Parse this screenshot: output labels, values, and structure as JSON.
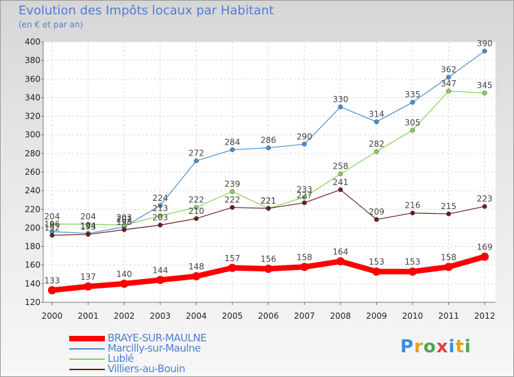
{
  "title": "Evolution des Impôts locaux par Habitant",
  "subtitle": "(en € et par an)",
  "logo": {
    "text": "Proxiti",
    "letters": [
      "P",
      "r",
      "o",
      "x",
      "i",
      "t",
      "i"
    ],
    "colors": [
      "#3a8ee0",
      "#e8a020",
      "#4da64d",
      "#e04040",
      "#3a8ee0",
      "#e8a020",
      "#4da64d"
    ]
  },
  "chart_data": {
    "type": "line",
    "title": "Evolution des Impôts locaux par Habitant",
    "subtitle": "(en € et par an)",
    "xlabel": "",
    "ylabel": "",
    "x": [
      "2000",
      "2001",
      "2002",
      "2003",
      "2004",
      "2005",
      "2006",
      "2007",
      "2008",
      "2009",
      "2010",
      "2011",
      "2012"
    ],
    "ylim": [
      120,
      400
    ],
    "yticks": [
      120,
      140,
      160,
      180,
      200,
      220,
      240,
      260,
      280,
      300,
      320,
      340,
      360,
      380,
      400
    ],
    "grid": true,
    "legend_position": "bottom-left",
    "series": [
      {
        "name": "BRAYE-SUR-MAULNE",
        "color": "#ff0000",
        "values": [
          133,
          137,
          140,
          144,
          148,
          157,
          156,
          158,
          164,
          153,
          153,
          158,
          169
        ],
        "labels": [
          "133",
          "137",
          "140",
          "144",
          "148",
          "157",
          "156",
          "158",
          "164",
          "153",
          "153",
          "158",
          "169"
        ]
      },
      {
        "name": "Marcilly-sur-Maulne",
        "color": "#4a8fd0",
        "values": [
          196,
          194,
          201,
          224,
          272,
          284,
          286,
          290,
          330,
          314,
          335,
          362,
          390
        ],
        "labels": [
          "196",
          "194",
          "201",
          "224",
          "272",
          "284",
          "286",
          "290",
          "330",
          "314",
          "335",
          "362",
          "390"
        ]
      },
      {
        "name": "Lublé",
        "color": "#88d058",
        "values": [
          204,
          204,
          203,
          213,
          222,
          239,
          221,
          233,
          258,
          282,
          305,
          347,
          345
        ],
        "labels": [
          "204",
          "204",
          "203",
          "213",
          "222",
          "239",
          "221",
          "233",
          "258",
          "282",
          "305",
          "347",
          "345"
        ]
      },
      {
        "name": "Villiers-au-Bouin",
        "color": "#6b1f1f",
        "values": [
          192,
          193,
          198,
          203,
          210,
          222,
          221,
          227,
          241,
          209,
          216,
          215,
          223
        ],
        "labels": [
          "192",
          "193",
          "198",
          "203",
          "210",
          "222",
          "221",
          "227",
          "241",
          "209",
          "216",
          "215",
          "223"
        ]
      }
    ]
  }
}
